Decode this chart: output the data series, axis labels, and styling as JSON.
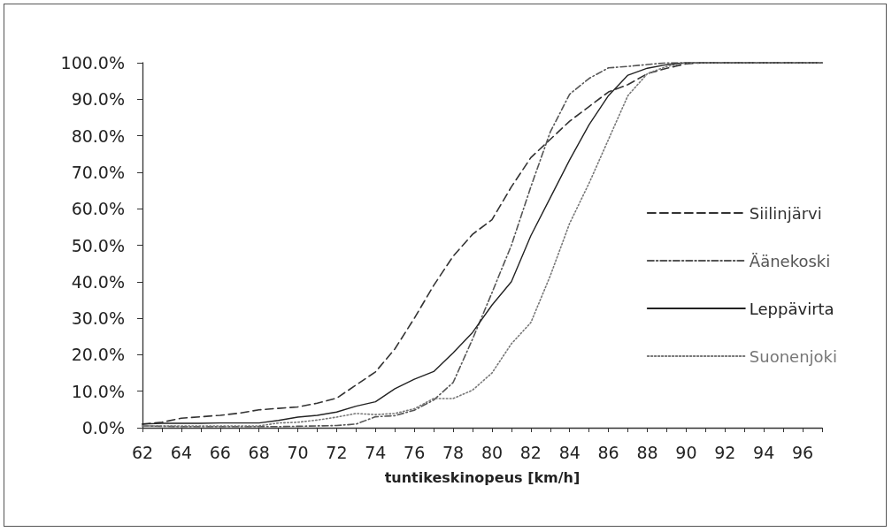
{
  "chart_data": {
    "type": "line",
    "xlabel": "tuntikeskinopeus [km/h]",
    "x": [
      62,
      63,
      64,
      65,
      66,
      67,
      68,
      69,
      70,
      71,
      72,
      73,
      74,
      75,
      76,
      77,
      78,
      79,
      80,
      81,
      82,
      83,
      84,
      85,
      86,
      87,
      88,
      89,
      90,
      91,
      92,
      93,
      94,
      95,
      96,
      97
    ],
    "series": [
      {
        "name": "Siilinjärvi",
        "color": "#333333",
        "line_style": "dashed",
        "values": [
          1,
          1.5,
          2.6,
          3,
          3.4,
          4,
          4.9,
          5.3,
          5.7,
          6.7,
          8.1,
          11.7,
          15.3,
          21.6,
          30,
          39,
          47,
          53,
          57,
          66,
          74,
          79,
          84,
          88,
          92,
          94,
          97,
          98.5,
          99.7,
          100,
          100,
          100,
          100,
          100,
          100,
          100
        ]
      },
      {
        "name": "Äänekoski",
        "color": "#555555",
        "line_style": "dashdot",
        "values": [
          0.5,
          0.4,
          0.3,
          0.3,
          0.3,
          0.3,
          0.3,
          0.3,
          0.4,
          0.5,
          0.6,
          1,
          3,
          3.3,
          4.8,
          7.6,
          12.4,
          24.3,
          37,
          50,
          66,
          81,
          91.4,
          95.7,
          98.6,
          99,
          99.5,
          100,
          100,
          100,
          100,
          100,
          100,
          100,
          100,
          100
        ]
      },
      {
        "name": "Leppävirta",
        "color": "#222222",
        "line_style": "solid",
        "values": [
          1,
          1.2,
          1.2,
          1.2,
          1.3,
          1.3,
          1.3,
          2,
          2.9,
          3.4,
          4.3,
          5.9,
          7.1,
          10.7,
          13.3,
          15.4,
          20.5,
          26.1,
          33.6,
          40,
          52.6,
          63,
          73.4,
          83,
          91,
          96.6,
          98.5,
          99.5,
          100,
          100,
          100,
          100,
          100,
          100,
          100,
          100
        ]
      },
      {
        "name": "Suonenjoki",
        "color": "#777777",
        "line_style": "dotted",
        "values": [
          0.5,
          0.5,
          0.5,
          0.5,
          0.5,
          0.5,
          0.5,
          1.3,
          1.5,
          2.1,
          2.9,
          3.9,
          3.6,
          3.9,
          5.2,
          8,
          8,
          10.3,
          15,
          23,
          28.8,
          41.6,
          56,
          67,
          79,
          91,
          97,
          99,
          100,
          100,
          100,
          100,
          100,
          100,
          100,
          100
        ]
      }
    ],
    "xlim": [
      62,
      97
    ],
    "xticks": [
      62,
      {
        "value": 63,
        "label": null
      },
      64,
      {
        "value": 65,
        "label": null
      },
      66,
      {
        "value": 67,
        "label": null
      },
      68,
      {
        "value": 69,
        "label": null
      },
      70,
      {
        "value": 71,
        "label": null
      },
      72,
      {
        "value": 73,
        "label": null
      },
      74,
      {
        "value": 75,
        "label": null
      },
      76,
      {
        "value": 77,
        "label": null
      },
      78,
      {
        "value": 79,
        "label": null
      },
      80,
      {
        "value": 81,
        "label": null
      },
      82,
      {
        "value": 83,
        "label": null
      },
      84,
      {
        "value": 85,
        "label": null
      },
      86,
      {
        "value": 87,
        "label": null
      },
      88,
      {
        "value": 89,
        "label": null
      },
      90,
      {
        "value": 91,
        "label": null
      },
      92,
      {
        "value": 93,
        "label": null
      },
      94,
      {
        "value": 95,
        "label": null
      },
      96,
      {
        "value": 97,
        "label": null
      }
    ],
    "ylim": [
      0,
      100
    ],
    "yticks": [
      {
        "value": 0,
        "label": "0.0%"
      },
      {
        "value": 10,
        "label": "10.0%"
      },
      {
        "value": 20,
        "label": "20.0%"
      },
      {
        "value": 30,
        "label": "30.0%"
      },
      {
        "value": 40,
        "label": "40.0%"
      },
      {
        "value": 50,
        "label": "50.0%"
      },
      {
        "value": 60,
        "label": "60.0%"
      },
      {
        "value": 70,
        "label": "70.0%"
      },
      {
        "value": 80,
        "label": "80.0%"
      },
      {
        "value": 90,
        "label": "90.0%"
      },
      {
        "value": 100,
        "label": "100.0%"
      }
    ],
    "grid": false,
    "legend": "right",
    "marker": "none"
  }
}
